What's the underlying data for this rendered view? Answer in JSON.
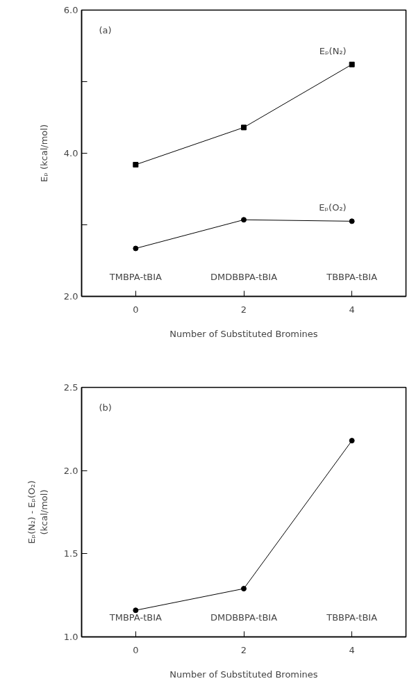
{
  "chart_data": [
    {
      "type": "line",
      "xlabel": "Number of Substituted Bromines",
      "ylabel": "Eₚ (kcal/mol)",
      "x": [
        0,
        2,
        4
      ],
      "xlim": [
        -1,
        5
      ],
      "xticks": [
        0,
        2,
        4
      ],
      "ylim": [
        2,
        6
      ],
      "yticks": [
        {
          "value": 2,
          "label": "2.0"
        },
        {
          "value": 3,
          "label": null
        },
        {
          "value": 4,
          "label": "4.0"
        },
        {
          "value": 5,
          "label": null
        },
        {
          "value": 6,
          "label": "6.0"
        }
      ],
      "grid": false,
      "series": [
        {
          "name": "Eₚ(N₂)",
          "color": "#000000",
          "marker": "square",
          "values": [
            3.84,
            4.36,
            5.24
          ]
        },
        {
          "name": "Eₚ(O₂)",
          "color": "#000000",
          "marker": "circle",
          "values": [
            2.67,
            3.07,
            3.05
          ]
        }
      ],
      "annotations": [
        "(a)",
        "TMBPA-tBIA",
        "DMDBBPA-tBIA",
        "TBBPA-tBIA"
      ]
    },
    {
      "type": "line",
      "xlabel": "Number of Substituted Bromines",
      "ylabel": "Eₚ(N₂) - Eₚ(O₂)\n(kcal/mol)",
      "x": [
        0,
        2,
        4
      ],
      "xlim": [
        -1,
        5
      ],
      "xticks": [
        0,
        2,
        4
      ],
      "ylim": [
        1.0,
        2.5
      ],
      "yticks": [
        {
          "value": 1,
          "label": "1.0"
        },
        1.5,
        {
          "value": 2,
          "label": "2.0"
        },
        2.5
      ],
      "grid": false,
      "marker": "circle",
      "series": [
        {
          "color": "#000000",
          "values": [
            1.16,
            1.29,
            2.18
          ]
        }
      ],
      "annotations": [
        "(b)",
        "TMBPA-tBIA",
        "DMDBBPA-tBIA",
        "TBBPA-tBIA"
      ]
    }
  ]
}
